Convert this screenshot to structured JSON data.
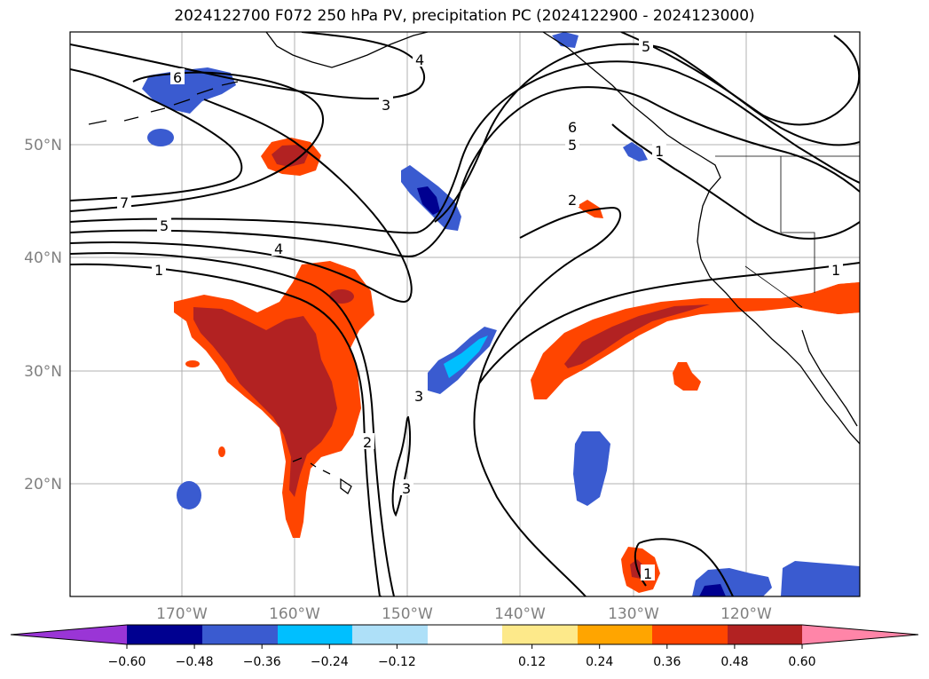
{
  "title": "2024122700 F072 250 hPa PV, precipitation PC (2024122900 - 2024123000)",
  "colors": {
    "neg_lt_060": "#9a35d6",
    "neg_060_048": "#000090",
    "neg_048_036": "#3a5bd0",
    "neg_036_024": "#00bfff",
    "neg_024_012": "#aee0f8",
    "neutral": "#ffffff",
    "pos_012_024": "#fde98a",
    "pos_024_036": "#ffa500",
    "pos_036_048": "#ff4500",
    "pos_048_060": "#b22222",
    "pos_gt_060": "#ff85a8",
    "contour": "#000000",
    "coast": "#000000",
    "grid": "#b0b0b0"
  },
  "lon_labels": [
    "170°W",
    "160°W",
    "150°W",
    "140°W",
    "130°W",
    "120°W"
  ],
  "lat_labels": [
    "50°N",
    "40°N",
    "30°N",
    "20°N"
  ],
  "contour_labels": [
    "7",
    "5",
    "4",
    "1",
    "6",
    "4",
    "3",
    "2",
    "3",
    "3",
    "5",
    "6",
    "5",
    "2",
    "1",
    "1",
    "1"
  ],
  "colorbar": {
    "ticks": [
      "−0.60",
      "−0.48",
      "−0.36",
      "−0.24",
      "−0.12",
      "0.12",
      "0.24",
      "0.36",
      "0.48",
      "0.60"
    ],
    "levels": [
      -0.6,
      -0.48,
      -0.36,
      -0.24,
      -0.12,
      0.12,
      0.24,
      0.36,
      0.48,
      0.6
    ]
  }
}
